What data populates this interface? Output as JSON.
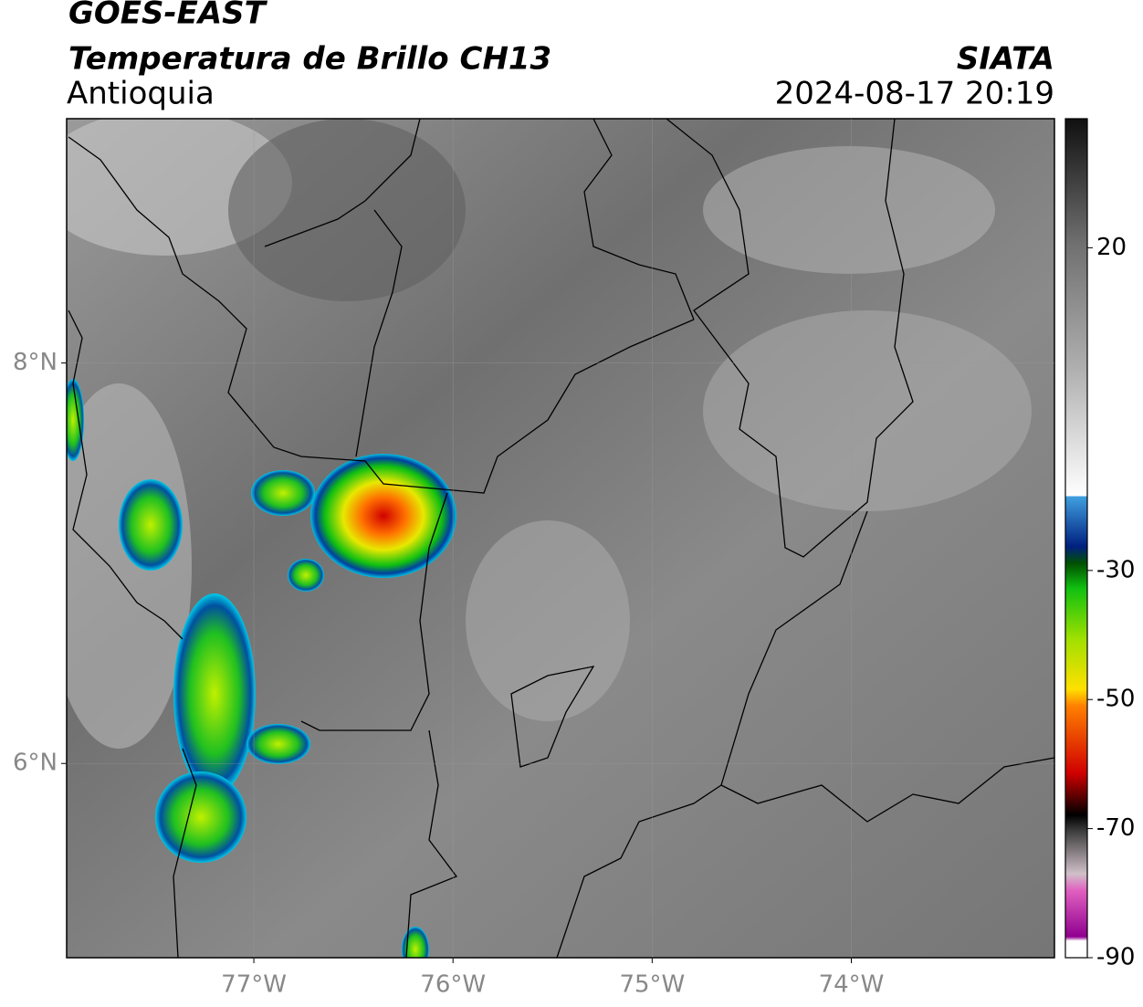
{
  "header": {
    "title": "GOES-EAST",
    "subtitle": "Temperatura de Brillo CH13",
    "region": "Antioquia",
    "source": "SIATA",
    "datetime": "2024-08-17 20:19"
  },
  "map": {
    "xlim": [
      -77.94,
      -72.98
    ],
    "ylim": [
      5.03,
      9.22
    ],
    "xticks": [
      {
        "value": -77,
        "label": "77°W"
      },
      {
        "value": -76,
        "label": "76°W"
      },
      {
        "value": -75,
        "label": "75°W"
      },
      {
        "value": -74,
        "label": "74°W"
      }
    ],
    "yticks": [
      {
        "value": 8,
        "label": "8°N"
      },
      {
        "value": 6,
        "label": "6°N"
      }
    ],
    "grid": true
  },
  "colorbar": {
    "clim": [
      -90,
      40
    ],
    "ticks": [
      20,
      -30,
      -50,
      -70,
      -90
    ]
  }
}
